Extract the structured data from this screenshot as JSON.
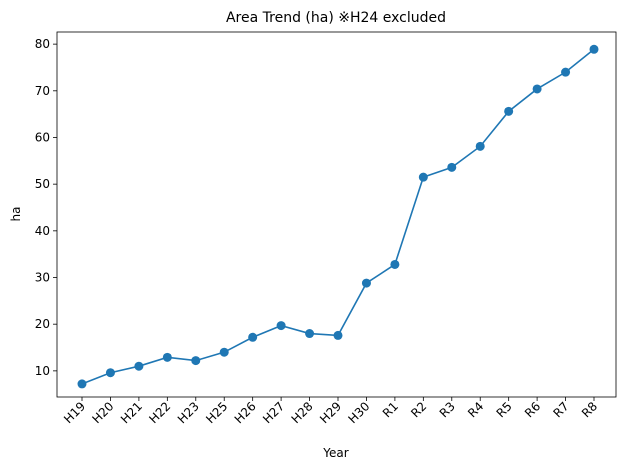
{
  "chart_data": {
    "type": "line",
    "title": "Area Trend (ha) ※H24 excluded",
    "xlabel": "Year",
    "ylabel": "ha",
    "categories": [
      "H19",
      "H20",
      "H21",
      "H22",
      "H23",
      "H25",
      "H26",
      "H27",
      "H28",
      "H29",
      "H30",
      "R1",
      "R2",
      "R3",
      "R4",
      "R5",
      "R6",
      "R7",
      "R8"
    ],
    "series": [
      {
        "name": "Area",
        "values": [
          7.2,
          9.6,
          11.0,
          12.9,
          12.2,
          14.0,
          17.2,
          19.7,
          18.0,
          17.6,
          28.8,
          32.8,
          51.5,
          53.6,
          58.1,
          65.6,
          70.4,
          74.0,
          78.9
        ],
        "color": "#1f77b4"
      }
    ],
    "ylim": [
      4.4,
      82.6
    ],
    "yticks": [
      10,
      20,
      30,
      40,
      50,
      60,
      70,
      80
    ],
    "grid": false
  }
}
